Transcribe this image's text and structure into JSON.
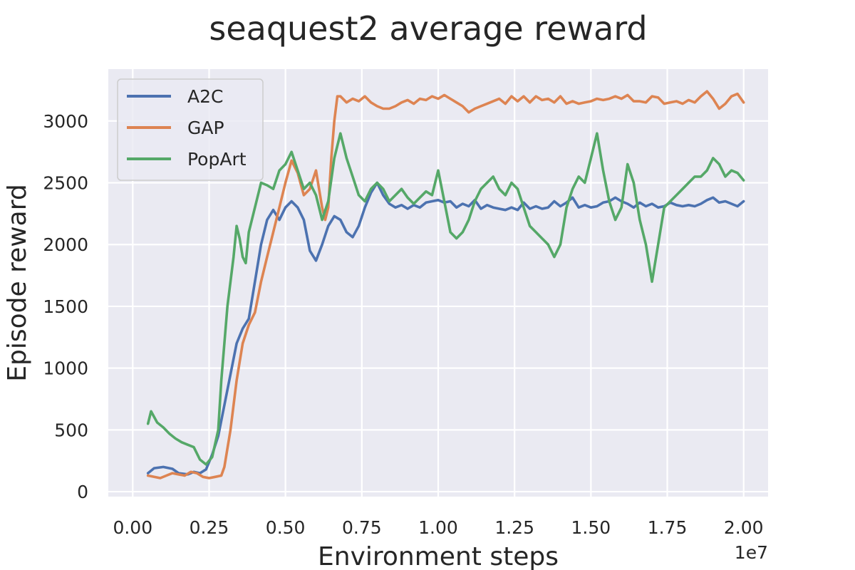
{
  "chart_data": {
    "type": "line",
    "title": "seaquest2 average reward",
    "xlabel": "Environment steps",
    "ylabel": "Episode reward",
    "x_offset_label": "1e7",
    "xlim": [
      -0.08,
      2.08
    ],
    "ylim": [
      -40,
      3420
    ],
    "x_ticks": [
      0.0,
      0.25,
      0.5,
      0.75,
      1.0,
      1.25,
      1.5,
      1.75,
      2.0
    ],
    "x_tick_labels": [
      "0.00",
      "0.25",
      "0.50",
      "0.75",
      "1.00",
      "1.25",
      "1.50",
      "1.75",
      "2.00"
    ],
    "y_ticks": [
      0,
      500,
      1000,
      1500,
      2000,
      2500,
      3000
    ],
    "y_tick_labels": [
      "0",
      "500",
      "1000",
      "1500",
      "2000",
      "2500",
      "3000"
    ],
    "grid": true,
    "legend_position": "top-left",
    "colors": {
      "background": "#EAEAF2",
      "grid": "#FFFFFF",
      "A2C": "#4C72B0",
      "GAP": "#DD8452",
      "PopArt": "#55A868"
    },
    "series": [
      {
        "name": "A2C",
        "color": "#4C72B0",
        "points": [
          [
            0.05,
            150
          ],
          [
            0.07,
            190
          ],
          [
            0.1,
            200
          ],
          [
            0.13,
            185
          ],
          [
            0.15,
            150
          ],
          [
            0.18,
            140
          ],
          [
            0.2,
            160
          ],
          [
            0.22,
            150
          ],
          [
            0.24,
            180
          ],
          [
            0.26,
            300
          ],
          [
            0.28,
            450
          ],
          [
            0.3,
            700
          ],
          [
            0.32,
            950
          ],
          [
            0.34,
            1200
          ],
          [
            0.36,
            1320
          ],
          [
            0.38,
            1400
          ],
          [
            0.4,
            1700
          ],
          [
            0.42,
            2000
          ],
          [
            0.44,
            2200
          ],
          [
            0.46,
            2280
          ],
          [
            0.48,
            2200
          ],
          [
            0.5,
            2300
          ],
          [
            0.52,
            2350
          ],
          [
            0.54,
            2300
          ],
          [
            0.56,
            2200
          ],
          [
            0.58,
            1950
          ],
          [
            0.6,
            1870
          ],
          [
            0.62,
            2000
          ],
          [
            0.64,
            2150
          ],
          [
            0.66,
            2230
          ],
          [
            0.68,
            2200
          ],
          [
            0.7,
            2100
          ],
          [
            0.72,
            2060
          ],
          [
            0.74,
            2150
          ],
          [
            0.76,
            2300
          ],
          [
            0.78,
            2420
          ],
          [
            0.8,
            2500
          ],
          [
            0.82,
            2400
          ],
          [
            0.84,
            2330
          ],
          [
            0.86,
            2300
          ],
          [
            0.88,
            2320
          ],
          [
            0.9,
            2290
          ],
          [
            0.92,
            2320
          ],
          [
            0.94,
            2300
          ],
          [
            0.96,
            2340
          ],
          [
            0.98,
            2350
          ],
          [
            1.0,
            2360
          ],
          [
            1.02,
            2340
          ],
          [
            1.04,
            2350
          ],
          [
            1.06,
            2300
          ],
          [
            1.08,
            2330
          ],
          [
            1.1,
            2310
          ],
          [
            1.12,
            2360
          ],
          [
            1.14,
            2290
          ],
          [
            1.16,
            2320
          ],
          [
            1.18,
            2300
          ],
          [
            1.2,
            2290
          ],
          [
            1.22,
            2280
          ],
          [
            1.24,
            2300
          ],
          [
            1.26,
            2280
          ],
          [
            1.28,
            2340
          ],
          [
            1.3,
            2290
          ],
          [
            1.32,
            2310
          ],
          [
            1.34,
            2290
          ],
          [
            1.36,
            2300
          ],
          [
            1.38,
            2350
          ],
          [
            1.4,
            2310
          ],
          [
            1.42,
            2340
          ],
          [
            1.44,
            2380
          ],
          [
            1.46,
            2300
          ],
          [
            1.48,
            2320
          ],
          [
            1.5,
            2300
          ],
          [
            1.52,
            2310
          ],
          [
            1.54,
            2340
          ],
          [
            1.56,
            2350
          ],
          [
            1.58,
            2380
          ],
          [
            1.6,
            2350
          ],
          [
            1.62,
            2330
          ],
          [
            1.64,
            2300
          ],
          [
            1.66,
            2340
          ],
          [
            1.68,
            2310
          ],
          [
            1.7,
            2330
          ],
          [
            1.72,
            2300
          ],
          [
            1.74,
            2310
          ],
          [
            1.76,
            2340
          ],
          [
            1.78,
            2320
          ],
          [
            1.8,
            2310
          ],
          [
            1.82,
            2320
          ],
          [
            1.84,
            2310
          ],
          [
            1.86,
            2330
          ],
          [
            1.88,
            2360
          ],
          [
            1.9,
            2380
          ],
          [
            1.92,
            2340
          ],
          [
            1.94,
            2350
          ],
          [
            1.96,
            2330
          ],
          [
            1.98,
            2310
          ],
          [
            2.0,
            2350
          ]
        ]
      },
      {
        "name": "GAP",
        "color": "#DD8452",
        "points": [
          [
            0.05,
            130
          ],
          [
            0.07,
            120
          ],
          [
            0.09,
            110
          ],
          [
            0.11,
            130
          ],
          [
            0.13,
            150
          ],
          [
            0.15,
            140
          ],
          [
            0.17,
            130
          ],
          [
            0.19,
            160
          ],
          [
            0.21,
            150
          ],
          [
            0.23,
            120
          ],
          [
            0.25,
            110
          ],
          [
            0.27,
            120
          ],
          [
            0.29,
            130
          ],
          [
            0.3,
            200
          ],
          [
            0.32,
            500
          ],
          [
            0.34,
            900
          ],
          [
            0.36,
            1200
          ],
          [
            0.38,
            1350
          ],
          [
            0.4,
            1450
          ],
          [
            0.42,
            1700
          ],
          [
            0.44,
            1900
          ],
          [
            0.46,
            2100
          ],
          [
            0.48,
            2300
          ],
          [
            0.5,
            2500
          ],
          [
            0.52,
            2680
          ],
          [
            0.54,
            2580
          ],
          [
            0.56,
            2400
          ],
          [
            0.58,
            2450
          ],
          [
            0.6,
            2600
          ],
          [
            0.62,
            2300
          ],
          [
            0.63,
            2200
          ],
          [
            0.64,
            2300
          ],
          [
            0.65,
            2700
          ],
          [
            0.66,
            3000
          ],
          [
            0.67,
            3200
          ],
          [
            0.68,
            3200
          ],
          [
            0.7,
            3150
          ],
          [
            0.72,
            3180
          ],
          [
            0.74,
            3160
          ],
          [
            0.76,
            3200
          ],
          [
            0.78,
            3150
          ],
          [
            0.8,
            3120
          ],
          [
            0.82,
            3100
          ],
          [
            0.84,
            3100
          ],
          [
            0.86,
            3120
          ],
          [
            0.88,
            3150
          ],
          [
            0.9,
            3170
          ],
          [
            0.92,
            3140
          ],
          [
            0.94,
            3180
          ],
          [
            0.96,
            3170
          ],
          [
            0.98,
            3200
          ],
          [
            1.0,
            3180
          ],
          [
            1.02,
            3210
          ],
          [
            1.04,
            3180
          ],
          [
            1.06,
            3150
          ],
          [
            1.08,
            3120
          ],
          [
            1.1,
            3070
          ],
          [
            1.12,
            3100
          ],
          [
            1.14,
            3120
          ],
          [
            1.16,
            3140
          ],
          [
            1.18,
            3160
          ],
          [
            1.2,
            3180
          ],
          [
            1.22,
            3140
          ],
          [
            1.24,
            3200
          ],
          [
            1.26,
            3160
          ],
          [
            1.28,
            3200
          ],
          [
            1.3,
            3150
          ],
          [
            1.32,
            3200
          ],
          [
            1.34,
            3170
          ],
          [
            1.36,
            3180
          ],
          [
            1.38,
            3150
          ],
          [
            1.4,
            3200
          ],
          [
            1.42,
            3140
          ],
          [
            1.44,
            3160
          ],
          [
            1.46,
            3140
          ],
          [
            1.48,
            3150
          ],
          [
            1.5,
            3160
          ],
          [
            1.52,
            3180
          ],
          [
            1.54,
            3170
          ],
          [
            1.56,
            3180
          ],
          [
            1.58,
            3200
          ],
          [
            1.6,
            3180
          ],
          [
            1.62,
            3210
          ],
          [
            1.64,
            3160
          ],
          [
            1.66,
            3160
          ],
          [
            1.68,
            3150
          ],
          [
            1.7,
            3200
          ],
          [
            1.72,
            3190
          ],
          [
            1.74,
            3140
          ],
          [
            1.76,
            3150
          ],
          [
            1.78,
            3160
          ],
          [
            1.8,
            3140
          ],
          [
            1.82,
            3170
          ],
          [
            1.84,
            3150
          ],
          [
            1.86,
            3200
          ],
          [
            1.88,
            3240
          ],
          [
            1.9,
            3180
          ],
          [
            1.92,
            3100
          ],
          [
            1.94,
            3140
          ],
          [
            1.96,
            3200
          ],
          [
            1.98,
            3220
          ],
          [
            2.0,
            3150
          ]
        ]
      },
      {
        "name": "PopArt",
        "color": "#55A868",
        "points": [
          [
            0.05,
            550
          ],
          [
            0.06,
            650
          ],
          [
            0.08,
            560
          ],
          [
            0.1,
            520
          ],
          [
            0.12,
            470
          ],
          [
            0.14,
            430
          ],
          [
            0.16,
            400
          ],
          [
            0.18,
            380
          ],
          [
            0.2,
            360
          ],
          [
            0.22,
            260
          ],
          [
            0.24,
            220
          ],
          [
            0.26,
            280
          ],
          [
            0.28,
            500
          ],
          [
            0.29,
            900
          ],
          [
            0.3,
            1200
          ],
          [
            0.31,
            1500
          ],
          [
            0.32,
            1700
          ],
          [
            0.33,
            1900
          ],
          [
            0.34,
            2150
          ],
          [
            0.35,
            2050
          ],
          [
            0.36,
            1900
          ],
          [
            0.37,
            1850
          ],
          [
            0.38,
            2100
          ],
          [
            0.4,
            2300
          ],
          [
            0.42,
            2500
          ],
          [
            0.44,
            2480
          ],
          [
            0.46,
            2450
          ],
          [
            0.48,
            2600
          ],
          [
            0.5,
            2650
          ],
          [
            0.52,
            2750
          ],
          [
            0.54,
            2600
          ],
          [
            0.56,
            2450
          ],
          [
            0.58,
            2500
          ],
          [
            0.6,
            2400
          ],
          [
            0.62,
            2200
          ],
          [
            0.64,
            2350
          ],
          [
            0.66,
            2700
          ],
          [
            0.68,
            2900
          ],
          [
            0.7,
            2700
          ],
          [
            0.72,
            2550
          ],
          [
            0.74,
            2400
          ],
          [
            0.76,
            2350
          ],
          [
            0.78,
            2450
          ],
          [
            0.8,
            2500
          ],
          [
            0.82,
            2450
          ],
          [
            0.84,
            2350
          ],
          [
            0.86,
            2400
          ],
          [
            0.88,
            2450
          ],
          [
            0.9,
            2380
          ],
          [
            0.92,
            2330
          ],
          [
            0.94,
            2380
          ],
          [
            0.96,
            2430
          ],
          [
            0.98,
            2400
          ],
          [
            1.0,
            2600
          ],
          [
            1.02,
            2350
          ],
          [
            1.04,
            2100
          ],
          [
            1.06,
            2050
          ],
          [
            1.08,
            2100
          ],
          [
            1.1,
            2200
          ],
          [
            1.12,
            2350
          ],
          [
            1.14,
            2450
          ],
          [
            1.16,
            2500
          ],
          [
            1.18,
            2550
          ],
          [
            1.2,
            2450
          ],
          [
            1.22,
            2400
          ],
          [
            1.24,
            2500
          ],
          [
            1.26,
            2450
          ],
          [
            1.28,
            2300
          ],
          [
            1.3,
            2150
          ],
          [
            1.32,
            2100
          ],
          [
            1.34,
            2050
          ],
          [
            1.36,
            2000
          ],
          [
            1.38,
            1900
          ],
          [
            1.4,
            2000
          ],
          [
            1.42,
            2300
          ],
          [
            1.44,
            2450
          ],
          [
            1.46,
            2550
          ],
          [
            1.48,
            2500
          ],
          [
            1.5,
            2700
          ],
          [
            1.52,
            2900
          ],
          [
            1.54,
            2600
          ],
          [
            1.56,
            2350
          ],
          [
            1.58,
            2200
          ],
          [
            1.6,
            2300
          ],
          [
            1.62,
            2650
          ],
          [
            1.64,
            2500
          ],
          [
            1.66,
            2200
          ],
          [
            1.68,
            2000
          ],
          [
            1.7,
            1700
          ],
          [
            1.72,
            2000
          ],
          [
            1.74,
            2300
          ],
          [
            1.76,
            2350
          ],
          [
            1.78,
            2400
          ],
          [
            1.8,
            2450
          ],
          [
            1.82,
            2500
          ],
          [
            1.84,
            2550
          ],
          [
            1.86,
            2550
          ],
          [
            1.88,
            2600
          ],
          [
            1.9,
            2700
          ],
          [
            1.92,
            2650
          ],
          [
            1.94,
            2550
          ],
          [
            1.96,
            2600
          ],
          [
            1.98,
            2580
          ],
          [
            2.0,
            2520
          ]
        ]
      }
    ]
  }
}
